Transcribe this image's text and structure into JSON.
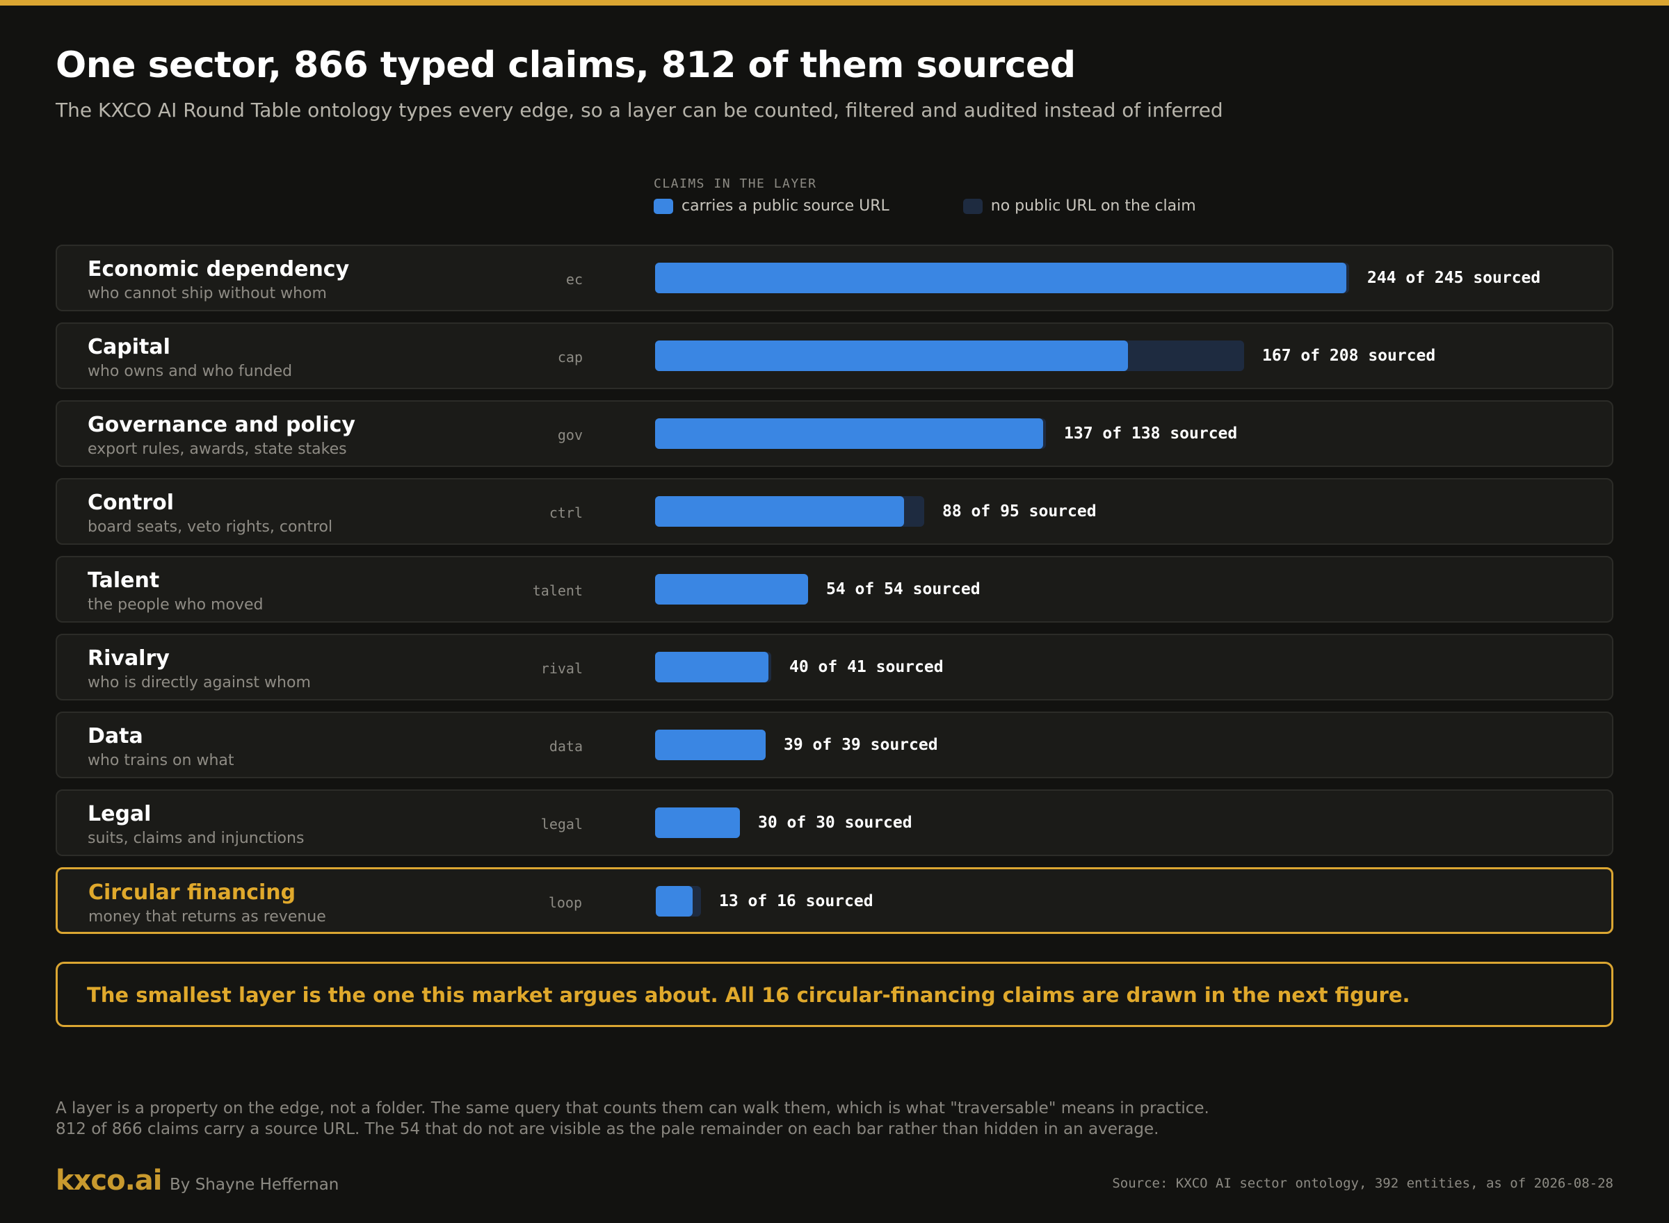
{
  "header": {
    "title": "One sector, 866 typed claims, 812 of them sourced",
    "subtitle": "The KXCO AI Round Table ontology types every edge, so a layer can be counted, filtered and audited instead of inferred"
  },
  "legend": {
    "title": "CLAIMS IN THE LAYER",
    "items": [
      {
        "label": "carries a public source URL",
        "color": "#3a86e3"
      },
      {
        "label": "no public URL on the claim",
        "color": "#1e2b40"
      }
    ]
  },
  "chart_data": {
    "type": "bar",
    "orientation": "horizontal",
    "stacked": true,
    "categories": [
      "Economic dependency",
      "Capital",
      "Governance and policy",
      "Control",
      "Talent",
      "Rivalry",
      "Data",
      "Legal",
      "Circular financing"
    ],
    "series": [
      {
        "name": "carries a public source URL",
        "values": [
          244,
          167,
          137,
          88,
          54,
          40,
          39,
          30,
          13
        ],
        "color": "#3a86e3"
      },
      {
        "name": "no public URL on the claim",
        "values": [
          1,
          41,
          1,
          7,
          0,
          1,
          0,
          0,
          3
        ],
        "color": "#1e2b40"
      }
    ],
    "xlim": [
      0,
      245
    ],
    "grid": false,
    "legend_position": "top",
    "rows": [
      {
        "name": "Economic dependency",
        "description": "who cannot ship without whom",
        "code": "ec",
        "sourced": 244,
        "total": 245,
        "label": "244 of 245 sourced",
        "highlight": false
      },
      {
        "name": "Capital",
        "description": "who owns and who funded",
        "code": "cap",
        "sourced": 167,
        "total": 208,
        "label": "167 of 208 sourced",
        "highlight": false
      },
      {
        "name": "Governance and policy",
        "description": "export rules, awards, state stakes",
        "code": "gov",
        "sourced": 137,
        "total": 138,
        "label": "137 of 138 sourced",
        "highlight": false
      },
      {
        "name": "Control",
        "description": "board seats, veto rights, control",
        "code": "ctrl",
        "sourced": 88,
        "total": 95,
        "label": "88 of 95 sourced",
        "highlight": false
      },
      {
        "name": "Talent",
        "description": "the people who moved",
        "code": "talent",
        "sourced": 54,
        "total": 54,
        "label": "54 of 54 sourced",
        "highlight": false
      },
      {
        "name": "Rivalry",
        "description": "who is directly against whom",
        "code": "rival",
        "sourced": 40,
        "total": 41,
        "label": "40 of 41 sourced",
        "highlight": false
      },
      {
        "name": "Data",
        "description": "who trains on what",
        "code": "data",
        "sourced": 39,
        "total": 39,
        "label": "39 of 39 sourced",
        "highlight": false
      },
      {
        "name": "Legal",
        "description": "suits, claims and injunctions",
        "code": "legal",
        "sourced": 30,
        "total": 30,
        "label": "30 of 30 sourced",
        "highlight": false
      },
      {
        "name": "Circular financing",
        "description": "money that returns as revenue",
        "code": "loop",
        "sourced": 13,
        "total": 16,
        "label": "13 of 16 sourced",
        "highlight": true
      }
    ]
  },
  "callout": {
    "text": "The smallest layer is the one this market argues about. All 16 circular-financing claims are drawn in the next figure."
  },
  "notes": [
    "A layer is a property on the edge, not a folder. The same query that counts them can walk them, which is what \"traversable\" means in practice.",
    "812 of 866 claims carry a source URL. The 54 that do not are visible as the pale remainder on each bar rather than hidden in an average."
  ],
  "footer": {
    "logo": "kxco.ai",
    "byline": "By Shayne Heffernan",
    "source": "Source: KXCO AI sector ontology, 392 entities, as of 2026-08-28"
  },
  "colors": {
    "accent": "#dba632",
    "sourced": "#3a86e3",
    "unsourced": "#1e2b40",
    "background": "#121210"
  }
}
